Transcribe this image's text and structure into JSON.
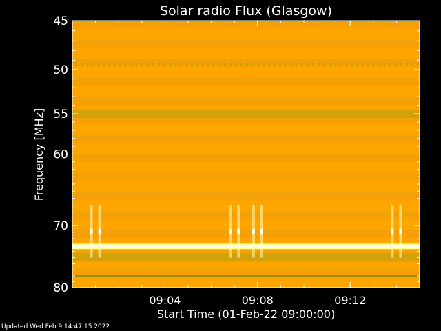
{
  "chart_data": {
    "type": "heatmap",
    "title": "Solar radio Flux (Glasgow)",
    "xlabel": "Start Time (01-Feb-22 09:00:00)",
    "ylabel": "Frequency [MHz]",
    "x_ticks": [
      "09:04",
      "09:08",
      "09:12"
    ],
    "y_ticks": [
      "45",
      "50",
      "55",
      "60",
      "70",
      "80"
    ],
    "xlim": [
      "09:00",
      "09:15"
    ],
    "ylim": [
      45,
      80
    ],
    "y_scale": "log",
    "grid": false,
    "colors": {
      "background": "#ffa500",
      "band_dark": "#c8a10c",
      "band_mid": "#e0a014",
      "bright_line": "#ffff90",
      "burst": "#ffffc0",
      "axis": "#ffffff"
    },
    "spectral_features": [
      {
        "kind": "band",
        "frequency": 55,
        "intensity": "medium"
      },
      {
        "kind": "line",
        "frequency": 73.2,
        "intensity": "bright"
      },
      {
        "kind": "band",
        "frequency": 75,
        "intensity": "medium"
      },
      {
        "kind": "line",
        "frequency": 78,
        "intensity": "dark"
      },
      {
        "kind": "burst",
        "time": "09:01",
        "frequency_range": [
          67,
          75
        ]
      },
      {
        "kind": "burst",
        "time": "09:07",
        "frequency_range": [
          67,
          75
        ]
      },
      {
        "kind": "burst",
        "time": "09:08",
        "frequency_range": [
          67,
          75
        ]
      },
      {
        "kind": "burst",
        "time": "09:14",
        "frequency_range": [
          67,
          75
        ]
      }
    ]
  },
  "footer": {
    "updated_text": "Updated Wed Feb  9 14:47:15 2022"
  }
}
